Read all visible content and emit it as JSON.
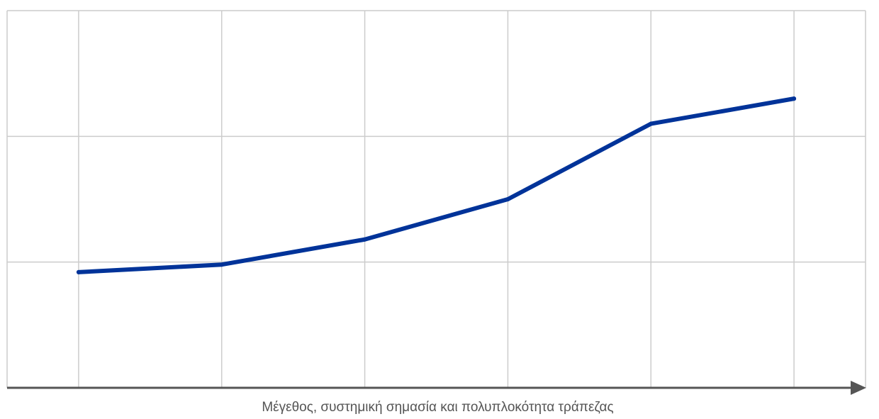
{
  "chart_data": {
    "type": "line",
    "title": "",
    "xlabel": "Μέγεθος, συστημική σημασία και πολυπλοκότητα τράπεζας",
    "ylabel": "",
    "x": [
      1,
      2,
      3,
      4,
      5,
      6
    ],
    "xlim": [
      0.5,
      6.5
    ],
    "ylim": [
      0,
      3
    ],
    "grid": true,
    "legend": "none",
    "series": [
      {
        "values": [
          0.92,
          0.98,
          1.18,
          1.5,
          2.1,
          2.3
        ],
        "color": "#003399"
      }
    ],
    "axis_color": "#555555",
    "grid_color": "#cccccc"
  }
}
